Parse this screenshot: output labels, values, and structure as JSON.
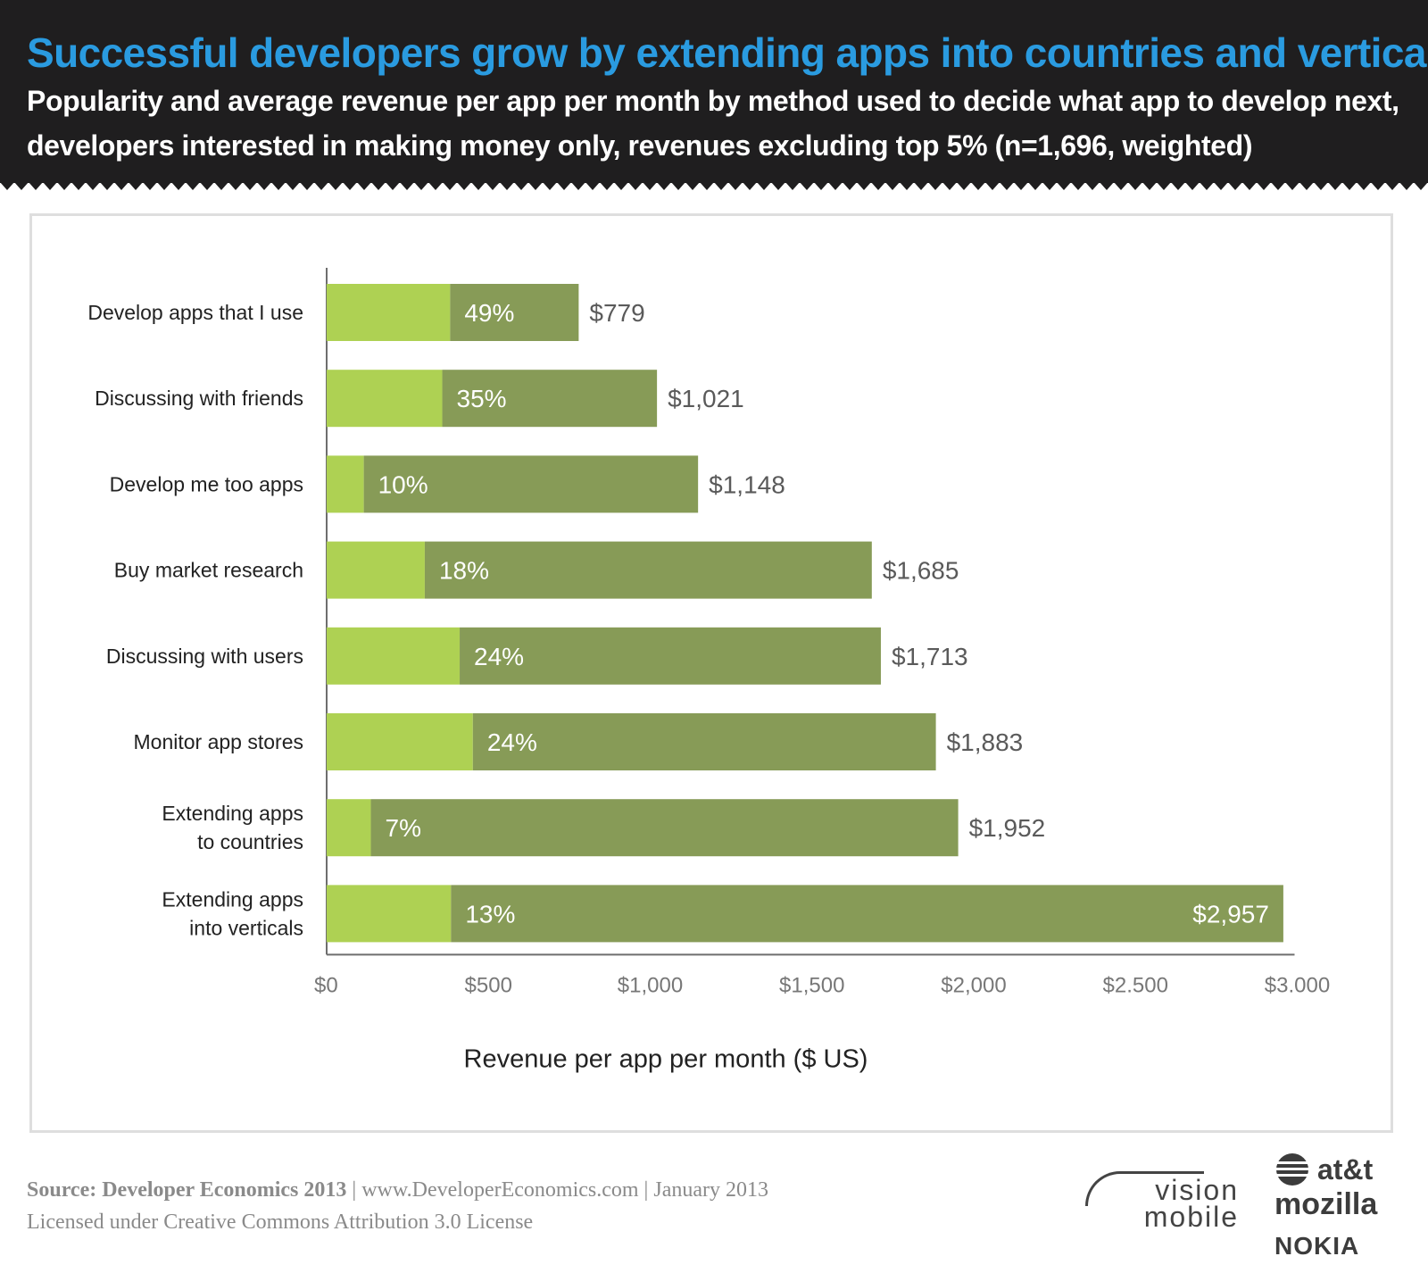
{
  "header": {
    "title": "Successful developers grow by extending apps into countries and verticals",
    "subtitle": "Popularity and average revenue per app per month by method used to decide what app to develop next, developers interested in making money only, revenues excluding top 5% (n=1,696, weighted)"
  },
  "chart_data": {
    "type": "bar",
    "orientation": "horizontal",
    "categories": [
      "Develop apps that I use",
      "Discussing with friends",
      "Develop me too apps",
      "Buy market research",
      "Discussing with users",
      "Monitor app stores",
      "Extending apps to countries",
      "Extending apps into verticals"
    ],
    "category_lines": [
      [
        "Develop apps that I use"
      ],
      [
        "Discussing with friends"
      ],
      [
        "Develop me too apps"
      ],
      [
        "Buy market research"
      ],
      [
        "Discussing with users"
      ],
      [
        "Monitor app stores"
      ],
      [
        "Extending apps",
        "to countries"
      ],
      [
        "Extending apps",
        "into verticals"
      ]
    ],
    "series": [
      {
        "name": "Revenue per app per month ($ US)",
        "values": [
          779,
          1021,
          1148,
          1685,
          1713,
          1883,
          1952,
          2957
        ]
      },
      {
        "name": "Popularity (%)",
        "values": [
          49,
          35,
          10,
          18,
          24,
          24,
          7,
          13
        ]
      }
    ],
    "value_labels": [
      "$779",
      "$1,021",
      "$1,148",
      "$1,685",
      "$1,713",
      "$1,883",
      "$1,952",
      "$2,957"
    ],
    "percent_labels": [
      "49%",
      "35%",
      "10%",
      "18%",
      "24%",
      "24%",
      "7%",
      "13%"
    ],
    "x_ticks": [
      0,
      500,
      1000,
      1500,
      2000,
      2500,
      3000
    ],
    "x_tick_labels": [
      "$0",
      "$500",
      "$1,000",
      "$1,500",
      "$2,000",
      "$2.500",
      "$3.000"
    ],
    "xlim": [
      0,
      3000
    ],
    "xlabel": "Revenue per app per month ($ US)",
    "ylabel": "",
    "colors": {
      "light": "#aed153",
      "dark": "#879b57",
      "label": "#5a5a5a",
      "axis": "#6e6e6e"
    }
  },
  "footer": {
    "source_label": "Source: Developer Economics 2013",
    "source_rest": " | www.DeveloperEconomics.com | January 2013",
    "license": "Licensed under Creative Commons Attribution 3.0 License"
  },
  "logos": {
    "vision_top": "vision",
    "vision_bottom": "mobile",
    "att": "at&t",
    "mozilla": "mozilla",
    "nokia": "NOKIA"
  }
}
